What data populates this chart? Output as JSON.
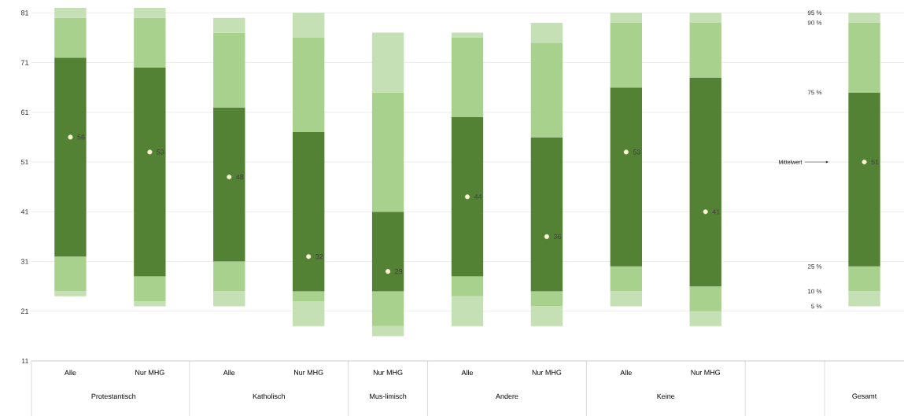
{
  "chart_data": {
    "type": "bar",
    "grid": "y",
    "categories": [
      "Alle",
      "Nur MHG",
      "Alle",
      "Nur MHG",
      "Nur MHG",
      "Alle",
      "Nur MHG",
      "Alle",
      "Nur MHG",
      null,
      null
    ],
    "series": [
      {
        "color": "#c5e0b4",
        "base": [
          24,
          22,
          22,
          18,
          16,
          18,
          18,
          22,
          18,
          null,
          22
        ],
        "values": [
          1,
          1,
          3,
          5,
          2,
          6,
          4,
          3,
          3,
          null,
          3
        ]
      },
      {
        "color": "#a9d18e",
        "base": [
          25,
          23,
          25,
          23,
          18,
          24,
          22,
          25,
          21,
          null,
          25
        ],
        "values": [
          7,
          5,
          6,
          2,
          7,
          4,
          3,
          5,
          5,
          null,
          5
        ]
      },
      {
        "color": "#548235",
        "base": [
          32,
          28,
          31,
          25,
          25,
          28,
          25,
          30,
          26,
          null,
          30
        ],
        "values": [
          40,
          42,
          31,
          32,
          16,
          32,
          31,
          36,
          42,
          null,
          35
        ]
      },
      {
        "color": "#a9d18e",
        "base": [
          72,
          70,
          62,
          57,
          41,
          60,
          56,
          66,
          68,
          null,
          65
        ],
        "values": [
          8,
          10,
          15,
          19,
          24,
          16,
          19,
          13,
          11,
          null,
          14
        ]
      },
      {
        "color": "#c5e0b4",
        "base": [
          80,
          80,
          77,
          76,
          65,
          76,
          75,
          79,
          79,
          null,
          79
        ],
        "values": [
          2,
          2,
          3,
          5,
          12,
          1,
          4,
          2,
          2,
          null,
          2
        ]
      },
      {
        "type": "scatter",
        "color": "#fff2cc",
        "marker": "circle",
        "values": [
          56,
          53,
          48,
          32,
          29,
          44,
          36,
          53,
          41,
          null,
          51
        ],
        "value_labels": [
          "56",
          "53",
          "48",
          "32",
          "29",
          "44",
          "36",
          "53",
          "41",
          null,
          "51"
        ]
      }
    ],
    "ylim": [
      11,
      82
    ],
    "yticks": [
      11,
      21,
      31,
      41,
      51,
      61,
      71,
      81
    ],
    "annotations": [
      "Protestantisch",
      "Katholisch",
      "Mus-limisch",
      "Andere",
      "Keine",
      "Gesamt",
      "95 %",
      "90 %",
      "75 %",
      "25 %",
      "10 %",
      "5 %",
      "Mittelwert"
    ]
  }
}
